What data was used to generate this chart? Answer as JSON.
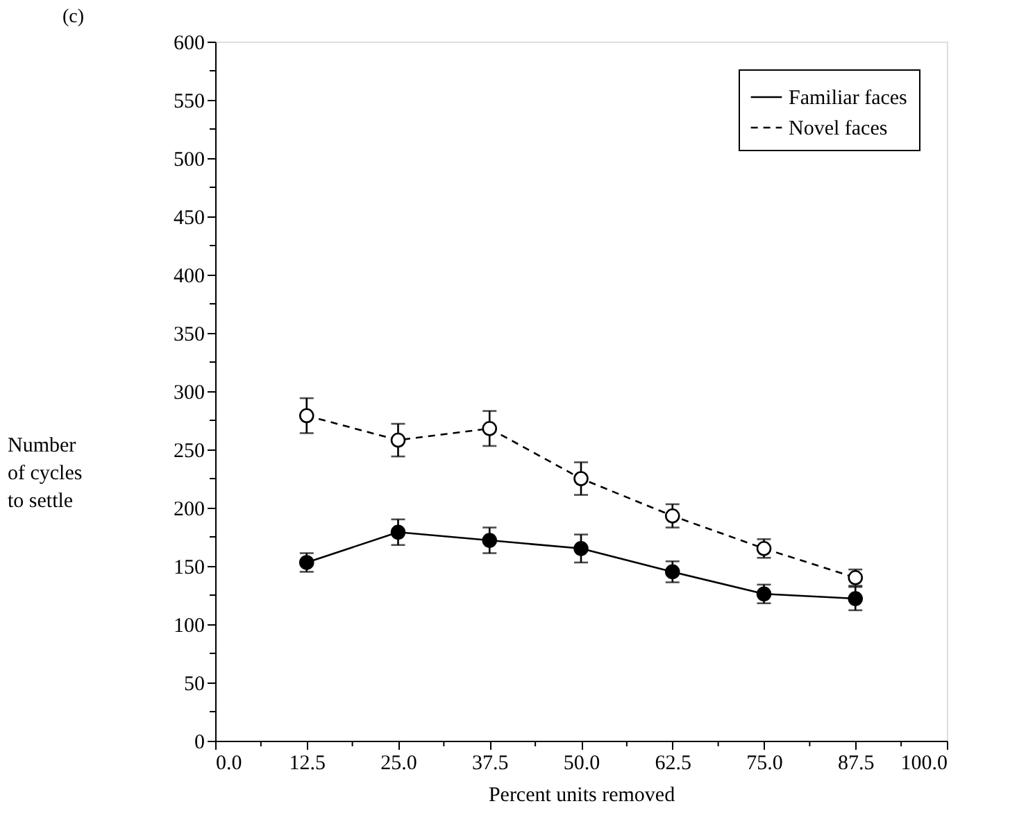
{
  "chart_data": {
    "type": "line",
    "title": "(c)",
    "xlabel": "Percent units removed",
    "ylabel": "Number\nof cycles\nto settle",
    "x": [
      12.5,
      25.0,
      37.5,
      50.0,
      62.5,
      75.0,
      87.5
    ],
    "series": [
      {
        "name": "Familiar faces",
        "color": "#000000",
        "values": [
          153,
          179,
          172,
          165,
          145,
          126,
          122
        ],
        "errors": [
          8,
          11,
          11,
          12,
          9,
          8,
          10
        ],
        "line_style": "solid",
        "marker": "circle"
      },
      {
        "name": "Novel faces",
        "color": "#000000",
        "values": [
          279,
          258,
          268,
          225,
          193,
          165,
          140
        ],
        "errors": [
          15,
          14,
          15,
          14,
          10,
          8,
          7
        ],
        "line_style": "dashed",
        "marker": "circle"
      }
    ],
    "xlim": [
      0,
      100
    ],
    "xticks": [
      {
        "value": 0,
        "label": "0.0"
      },
      {
        "value": 6.25,
        "label": null
      },
      {
        "value": 12.5,
        "label": "12.5"
      },
      {
        "value": 18.75,
        "label": null
      },
      {
        "value": 25,
        "label": "25.0"
      },
      {
        "value": 31.25,
        "label": null
      },
      {
        "value": 37.5,
        "label": "37.5"
      },
      {
        "value": 43.75,
        "label": null
      },
      {
        "value": 50,
        "label": "50.0"
      },
      {
        "value": 56.25,
        "label": null
      },
      {
        "value": 62.5,
        "label": "62.5"
      },
      {
        "value": 68.75,
        "label": null
      },
      {
        "value": 75,
        "label": "75.0"
      },
      {
        "value": 81.25,
        "label": null
      },
      {
        "value": 87.5,
        "label": "87.5"
      },
      {
        "value": 93.75,
        "label": null
      },
      {
        "value": 100,
        "label": "100.0"
      }
    ],
    "ylim": [
      0,
      600
    ],
    "yticks": [
      0,
      {
        "value": 25,
        "label": null
      },
      50,
      {
        "value": 75,
        "label": null
      },
      100,
      {
        "value": 125,
        "label": null
      },
      150,
      {
        "value": 175,
        "label": null
      },
      200,
      {
        "value": 225,
        "label": null
      },
      250,
      {
        "value": 275,
        "label": null
      },
      300,
      {
        "value": 325,
        "label": null
      },
      350,
      {
        "value": 375,
        "label": null
      },
      400,
      {
        "value": 425,
        "label": null
      },
      450,
      {
        "value": 475,
        "label": null
      },
      500,
      {
        "value": 525,
        "label": null
      },
      550,
      {
        "value": 575,
        "label": null
      },
      600
    ],
    "grid": false,
    "legend": "top right"
  }
}
